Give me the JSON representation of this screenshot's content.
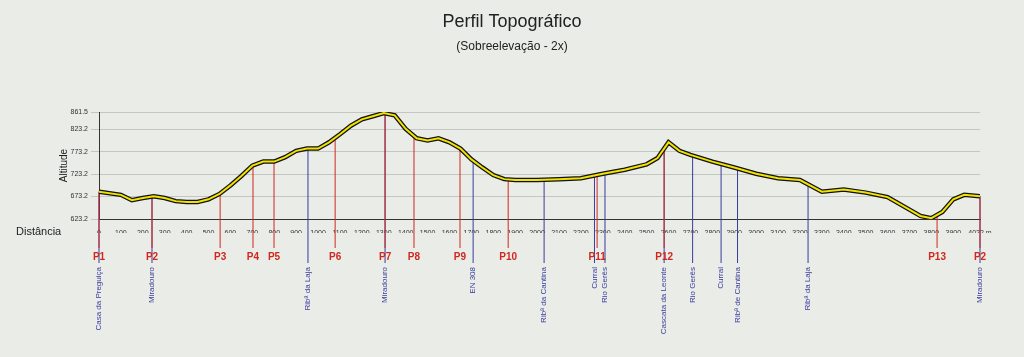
{
  "chart_data": {
    "type": "line",
    "title": "Perfil Topográfico",
    "subtitle": "(Sobreelevação - 2x)",
    "x_label": "Distância",
    "y_label": "Altitude",
    "color": "#f2e200",
    "grid": true,
    "x": [
      0,
      100,
      150,
      200,
      250,
      300,
      350,
      400,
      450,
      500,
      550,
      600,
      650,
      700,
      750,
      800,
      850,
      900,
      950,
      1000,
      1050,
      1100,
      1150,
      1200,
      1250,
      1300,
      1350,
      1400,
      1450,
      1500,
      1550,
      1600,
      1650,
      1700,
      1750,
      1800,
      1850,
      1900,
      2000,
      2100,
      2200,
      2300,
      2400,
      2500,
      2550,
      2600,
      2650,
      2700,
      2800,
      2900,
      3000,
      3100,
      3200,
      3300,
      3400,
      3500,
      3600,
      3700,
      3750,
      3800,
      3850,
      3900,
      3950,
      4022
    ],
    "values": [
      684,
      677,
      665,
      670,
      674,
      670,
      663,
      661,
      661,
      667,
      679,
      698,
      719,
      742,
      751,
      751,
      761,
      775,
      780,
      780,
      794,
      812,
      831,
      845,
      852,
      859,
      854,
      824,
      803,
      798,
      803,
      794,
      780,
      756,
      738,
      721,
      712,
      710,
      710,
      712,
      714,
      724,
      733,
      745,
      759,
      794,
      775,
      766,
      751,
      738,
      724,
      714,
      710,
      684,
      689,
      682,
      672,
      644,
      630,
      625,
      639,
      667,
      677,
      674
    ],
    "xlim": [
      0,
      4022
    ],
    "xticks": [
      0,
      100,
      200,
      300,
      400,
      500,
      600,
      700,
      800,
      900,
      1000,
      1100,
      1200,
      1300,
      1400,
      1500,
      1600,
      1700,
      1800,
      1900,
      2000,
      2100,
      2200,
      2300,
      2400,
      2500,
      2600,
      2700,
      2800,
      2900,
      3000,
      3100,
      3200,
      3300,
      3400,
      3500,
      3600,
      3700,
      3800,
      3900,
      {
        "value": 4022,
        "label": "4022 m"
      }
    ],
    "ylim": [
      623.2,
      861.5
    ],
    "yticks": [
      623.2,
      673.2,
      723.2,
      773.2,
      823.2,
      861.5
    ],
    "annotations": {
      "waypoints": {
        "color": "#d0281e",
        "items": [
          {
            "text": "P1",
            "x": 0
          },
          {
            "text": "P2",
            "x": 242
          },
          {
            "text": "P3",
            "x": 553
          },
          {
            "text": "P4",
            "x": 703
          },
          {
            "text": "P5",
            "x": 799
          },
          {
            "text": "P6",
            "x": 1078
          },
          {
            "text": "P7",
            "x": 1306
          },
          {
            "text": "P8",
            "x": 1438
          },
          {
            "text": "P9",
            "x": 1648
          },
          {
            "text": "P10",
            "x": 1868
          },
          {
            "text": "P11",
            "x": 2274
          },
          {
            "text": "P12",
            "x": 2580
          },
          {
            "text": "P13",
            "x": 3826
          },
          {
            "text": "P2",
            "x": 4022
          }
        ]
      },
      "places": {
        "color": "#3b3b9e",
        "items": [
          {
            "text": "Casa da Preguiça",
            "x": 0
          },
          {
            "text": "Miradouro",
            "x": 242
          },
          {
            "text": "Ribª da Laja",
            "x": 954
          },
          {
            "text": "Miradouro",
            "x": 1306
          },
          {
            "text": "EN 308",
            "x": 1708
          },
          {
            "text": "Ribª da Cantina",
            "x": 2032
          },
          {
            "text": "Curral",
            "x": 2262
          },
          {
            "text": "Rio Gerês",
            "x": 2310
          },
          {
            "text": "Cascata da Leonte",
            "x": 2580
          },
          {
            "text": "Rio Gerês",
            "x": 2710
          },
          {
            "text": "Curral",
            "x": 2840
          },
          {
            "text": "Ribª de Cantina",
            "x": 2915
          },
          {
            "text": "Ribª da Laja",
            "x": 3237
          },
          {
            "text": "Miradouro",
            "x": 4022
          }
        ]
      }
    }
  }
}
